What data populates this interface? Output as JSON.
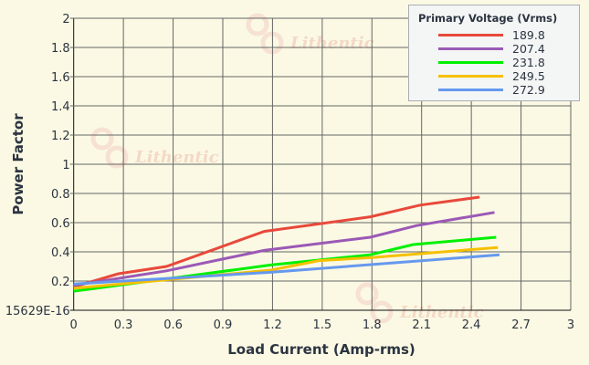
{
  "chart_data": {
    "type": "line",
    "title": "",
    "xlabel": "Load Current (Amp-rms)",
    "ylabel": "Power Factor",
    "xlim": [
      0,
      3
    ],
    "ylim": [
      0,
      2
    ],
    "xticks": [
      "0",
      "0.3",
      "0.6",
      "0.9",
      "1.2",
      "1.5",
      "1.8",
      "2.1",
      "2.4",
      "2.7",
      "3"
    ],
    "yticks": [
      "15629E-16",
      "0.2",
      "0.4",
      "0.6",
      "0.8",
      "1",
      "1.2",
      "1.4",
      "1.6",
      "1.8",
      "2"
    ],
    "grid": true,
    "legend_title": "Primary Voltage (Vrms)",
    "legend_position": "top-right",
    "watermark": "Lithentic",
    "series": [
      {
        "name": "189.8",
        "color": "#e8493a",
        "x": [
          0,
          0.27,
          0.56,
          1.15,
          1.79,
          2.09,
          2.45
        ],
        "y": [
          0.16,
          0.25,
          0.3,
          0.54,
          0.64,
          0.72,
          0.775
        ]
      },
      {
        "name": "207.4",
        "color": "#9b59b6",
        "x": [
          0,
          0.56,
          1.15,
          1.79,
          2.07,
          2.54
        ],
        "y": [
          0.17,
          0.27,
          0.41,
          0.5,
          0.58,
          0.67
        ]
      },
      {
        "name": "231.8",
        "color": "#00f000",
        "x": [
          0,
          1.19,
          1.79,
          2.05,
          2.55
        ],
        "y": [
          0.13,
          0.31,
          0.38,
          0.45,
          0.5
        ]
      },
      {
        "name": "249.5",
        "color": "#f5c000",
        "x": [
          0,
          1.19,
          1.48,
          1.79,
          2.56
        ],
        "y": [
          0.15,
          0.275,
          0.34,
          0.36,
          0.43
        ]
      },
      {
        "name": "272.9",
        "color": "#6699ee",
        "x": [
          0,
          1.19,
          2.57
        ],
        "y": [
          0.18,
          0.26,
          0.38
        ]
      }
    ]
  }
}
